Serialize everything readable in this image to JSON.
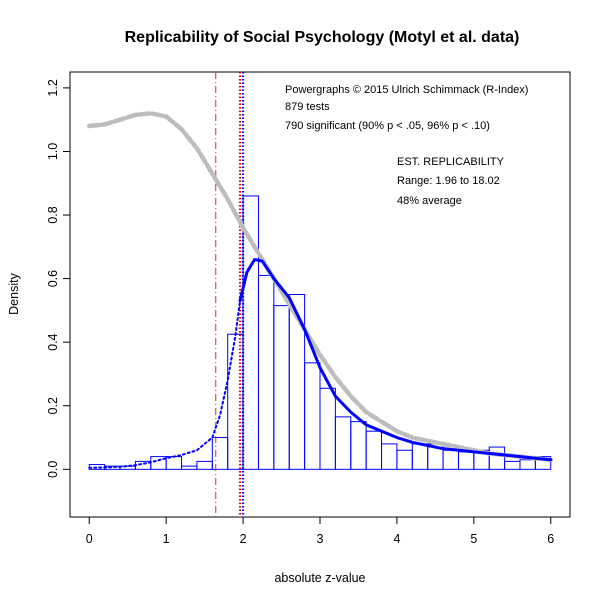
{
  "chart_data": {
    "type": "bar",
    "title": "Replicability of Social Psychology (Motyl et al. data)",
    "xlabel": "absolute z-value",
    "ylabel": "Density",
    "xlim": [
      -0.25,
      6.25
    ],
    "ylim": [
      -0.15,
      1.25
    ],
    "x_ticks": [
      "0",
      "1",
      "2",
      "3",
      "4",
      "5",
      "6"
    ],
    "y_ticks": [
      "0.0",
      "0.2",
      "0.4",
      "0.6",
      "0.8",
      "1.0",
      "1.2"
    ],
    "histogram": {
      "bin_width": 0.2,
      "bin_starts": [
        0.0,
        0.2,
        0.4,
        0.6,
        0.8,
        1.0,
        1.2,
        1.4,
        1.6,
        1.8,
        2.0,
        2.2,
        2.4,
        2.6,
        2.8,
        3.0,
        3.2,
        3.4,
        3.6,
        3.8,
        4.0,
        4.2,
        4.4,
        4.6,
        4.8,
        5.0,
        5.2,
        5.4,
        5.6,
        5.8
      ],
      "densities": [
        0.015,
        0.01,
        0.01,
        0.025,
        0.04,
        0.04,
        0.01,
        0.025,
        0.1,
        0.425,
        0.86,
        0.61,
        0.515,
        0.55,
        0.335,
        0.255,
        0.165,
        0.15,
        0.12,
        0.08,
        0.06,
        0.08,
        0.08,
        0.06,
        0.055,
        0.06,
        0.07,
        0.025,
        0.03,
        0.04
      ],
      "color": "#0000ff"
    },
    "series": [
      {
        "style": "gray-thick",
        "color": "#bdbdbd",
        "x": [
          0.0,
          0.2,
          0.4,
          0.6,
          0.8,
          1.0,
          1.2,
          1.4,
          1.6,
          1.8,
          2.0,
          2.2,
          2.4,
          2.6,
          2.8,
          3.0,
          3.2,
          3.4,
          3.6,
          3.8,
          4.0,
          4.2,
          4.4,
          4.6,
          4.8,
          5.0,
          5.2,
          5.4,
          5.6,
          5.8,
          6.0
        ],
        "y": [
          1.08,
          1.085,
          1.1,
          1.115,
          1.12,
          1.11,
          1.07,
          1.01,
          0.93,
          0.85,
          0.76,
          0.68,
          0.6,
          0.52,
          0.44,
          0.36,
          0.29,
          0.23,
          0.18,
          0.15,
          0.12,
          0.1,
          0.09,
          0.08,
          0.07,
          0.06,
          0.05,
          0.045,
          0.04,
          0.035,
          0.03
        ]
      },
      {
        "style": "blue-dotted",
        "color": "#0000ff",
        "x": [
          0.0,
          0.2,
          0.4,
          0.6,
          0.8,
          1.0,
          1.2,
          1.4,
          1.6,
          1.7,
          1.8,
          1.9,
          1.96
        ],
        "y": [
          0.005,
          0.006,
          0.008,
          0.013,
          0.022,
          0.035,
          0.045,
          0.06,
          0.1,
          0.17,
          0.28,
          0.42,
          0.53
        ]
      },
      {
        "style": "blue-solid",
        "color": "#0000ff",
        "x": [
          1.96,
          2.05,
          2.15,
          2.25,
          2.4,
          2.6,
          2.8,
          3.0,
          3.2,
          3.4,
          3.6,
          3.8,
          4.0,
          4.2,
          4.4,
          4.6,
          4.8,
          5.0,
          5.2,
          5.4,
          5.6,
          5.8,
          6.0
        ],
        "y": [
          0.53,
          0.62,
          0.66,
          0.655,
          0.6,
          0.54,
          0.44,
          0.32,
          0.23,
          0.18,
          0.14,
          0.12,
          0.1,
          0.085,
          0.075,
          0.065,
          0.06,
          0.055,
          0.05,
          0.045,
          0.04,
          0.035,
          0.03
        ]
      }
    ],
    "vertical_lines": [
      {
        "x": 1.645,
        "color": "#d42a2a",
        "dash": "dash-dot"
      },
      {
        "x": 1.96,
        "color": "#ff0000",
        "dash": "dotted"
      },
      {
        "x": 2.0,
        "color": "#0000ff",
        "dash": "dotted"
      }
    ],
    "annotations": {
      "credit": "Powergraphs © 2015 Ulrich Schimmack (R-Index)",
      "tests": "879 tests",
      "significant": "790 significant (90% p < .05, 96% p < .10)",
      "est_heading": "EST. REPLICABILITY",
      "range": "Range: 1.96 to 18.02",
      "average": "48% average"
    },
    "grid": false,
    "legend": "none"
  }
}
